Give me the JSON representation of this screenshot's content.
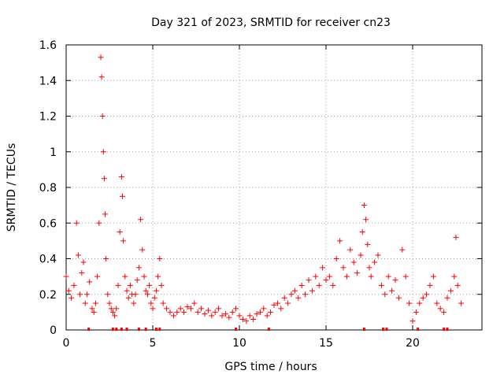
{
  "chart_data": {
    "type": "scatter",
    "title": "Day 321 of 2023, SRMTID for receiver cn23",
    "xlabel": "GPS time / hours",
    "ylabel": "SRMTID / TECUs",
    "xlim": [
      0,
      24
    ],
    "ylim": [
      0,
      1.6
    ],
    "xticks": [
      0,
      5,
      10,
      15,
      20
    ],
    "xtick_labels": [
      "0",
      "5",
      "10",
      "15",
      "20"
    ],
    "yticks": [
      0,
      0.2,
      0.4,
      0.6,
      0.8,
      1.0,
      1.2,
      1.4,
      1.6
    ],
    "ytick_labels": [
      "0",
      "0.2",
      "0.4",
      "0.6",
      "0.8",
      "1",
      "1.2",
      "1.4",
      "1.6"
    ],
    "grid": true,
    "marker": "plus",
    "color": "#ff0000",
    "series": [
      {
        "name": "SRMTID",
        "x": [
          0.0,
          0.15,
          0.3,
          0.45,
          0.6,
          0.7,
          0.8,
          0.9,
          1.0,
          1.1,
          1.2,
          1.35,
          1.5,
          1.6,
          1.7,
          1.8,
          1.9,
          2.0,
          2.05,
          2.1,
          2.15,
          2.2,
          2.25,
          2.3,
          2.4,
          2.5,
          2.6,
          2.7,
          2.8,
          2.9,
          3.0,
          3.1,
          3.2,
          3.25,
          3.3,
          3.4,
          3.5,
          3.6,
          3.7,
          3.8,
          3.9,
          4.0,
          4.1,
          4.2,
          4.3,
          4.4,
          4.5,
          4.6,
          4.7,
          4.8,
          4.9,
          5.0,
          5.1,
          5.2,
          5.3,
          5.4,
          5.5,
          5.6,
          5.8,
          6.0,
          6.2,
          6.4,
          6.6,
          6.8,
          7.0,
          7.2,
          7.4,
          7.6,
          7.8,
          8.0,
          8.2,
          8.4,
          8.6,
          8.8,
          9.0,
          9.2,
          9.4,
          9.6,
          9.8,
          10.0,
          10.2,
          10.4,
          10.6,
          10.8,
          11.0,
          11.2,
          11.4,
          11.6,
          11.8,
          12.0,
          12.2,
          12.4,
          12.6,
          12.8,
          13.0,
          13.2,
          13.4,
          13.6,
          13.8,
          14.0,
          14.2,
          14.4,
          14.6,
          14.8,
          15.0,
          15.2,
          15.4,
          15.6,
          15.8,
          16.0,
          16.2,
          16.4,
          16.6,
          16.8,
          17.0,
          17.1,
          17.2,
          17.3,
          17.4,
          17.5,
          17.6,
          17.8,
          18.0,
          18.2,
          18.4,
          18.6,
          18.8,
          19.0,
          19.2,
          19.4,
          19.6,
          19.8,
          20.0,
          20.2,
          20.4,
          20.6,
          20.8,
          21.0,
          21.2,
          21.4,
          21.6,
          21.8,
          22.0,
          22.2,
          22.4,
          22.5,
          22.6,
          22.8
        ],
        "y": [
          0.3,
          0.22,
          0.18,
          0.25,
          0.6,
          0.42,
          0.2,
          0.32,
          0.38,
          0.15,
          0.2,
          0.27,
          0.12,
          0.1,
          0.15,
          0.3,
          0.6,
          1.53,
          1.42,
          1.2,
          1.0,
          0.85,
          0.65,
          0.4,
          0.2,
          0.15,
          0.12,
          0.1,
          0.08,
          0.12,
          0.25,
          0.55,
          0.86,
          0.75,
          0.5,
          0.3,
          0.22,
          0.18,
          0.25,
          0.2,
          0.15,
          0.2,
          0.28,
          0.35,
          0.62,
          0.45,
          0.3,
          0.22,
          0.2,
          0.25,
          0.15,
          0.12,
          0.18,
          0.22,
          0.3,
          0.4,
          0.25,
          0.15,
          0.12,
          0.1,
          0.08,
          0.1,
          0.12,
          0.1,
          0.13,
          0.12,
          0.15,
          0.1,
          0.12,
          0.09,
          0.11,
          0.08,
          0.1,
          0.12,
          0.08,
          0.09,
          0.07,
          0.1,
          0.12,
          0.08,
          0.06,
          0.05,
          0.08,
          0.06,
          0.09,
          0.1,
          0.12,
          0.08,
          0.1,
          0.14,
          0.15,
          0.12,
          0.18,
          0.15,
          0.2,
          0.22,
          0.18,
          0.25,
          0.2,
          0.28,
          0.22,
          0.3,
          0.25,
          0.35,
          0.28,
          0.3,
          0.25,
          0.4,
          0.5,
          0.35,
          0.3,
          0.45,
          0.38,
          0.32,
          0.42,
          0.55,
          0.7,
          0.62,
          0.48,
          0.35,
          0.3,
          0.38,
          0.42,
          0.25,
          0.2,
          0.3,
          0.22,
          0.28,
          0.18,
          0.45,
          0.3,
          0.15,
          0.05,
          0.1,
          0.15,
          0.18,
          0.2,
          0.25,
          0.3,
          0.15,
          0.12,
          0.1,
          0.18,
          0.22,
          0.3,
          0.52,
          0.25,
          0.15
        ],
        "rug_x": [
          1.3,
          2.7,
          2.9,
          3.2,
          3.5,
          4.2,
          4.6,
          5.2,
          5.4,
          9.8,
          11.7,
          17.2,
          18.3,
          18.5,
          20.3,
          21.8,
          22.0
        ]
      }
    ]
  }
}
